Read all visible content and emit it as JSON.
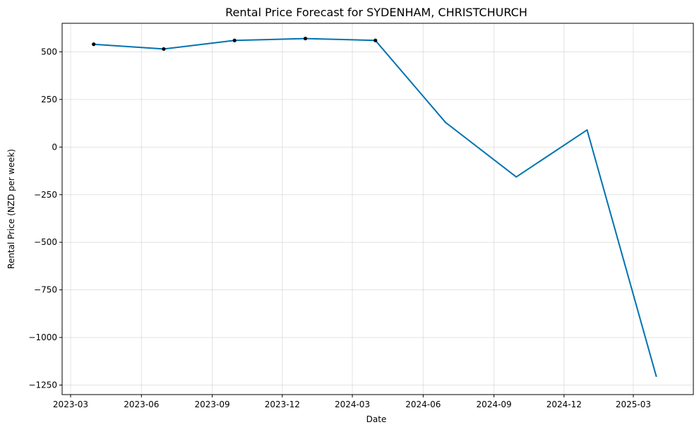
{
  "chart_data": {
    "type": "line",
    "title": "Rental Price Forecast for SYDENHAM, CHRISTCHURCH",
    "xlabel": "Date",
    "ylabel": "Rental Price (NZD per week)",
    "xlim": [
      "2023-02-18",
      "2025-05-18"
    ],
    "ylim": [
      -1300,
      650
    ],
    "x_ticks": [
      {
        "date": "2023-03-01",
        "label": "2023-03"
      },
      {
        "date": "2023-06-01",
        "label": "2023-06"
      },
      {
        "date": "2023-09-01",
        "label": "2023-09"
      },
      {
        "date": "2023-12-01",
        "label": "2023-12"
      },
      {
        "date": "2024-03-01",
        "label": "2024-03"
      },
      {
        "date": "2024-06-01",
        "label": "2024-06"
      },
      {
        "date": "2024-09-01",
        "label": "2024-09"
      },
      {
        "date": "2024-12-01",
        "label": "2024-12"
      },
      {
        "date": "2025-03-01",
        "label": "2025-03"
      }
    ],
    "y_ticks": [
      {
        "value": 500,
        "label": "500"
      },
      {
        "value": 250,
        "label": "250"
      },
      {
        "value": 0,
        "label": "0"
      },
      {
        "value": -250,
        "label": "−250"
      },
      {
        "value": -500,
        "label": "−500"
      },
      {
        "value": -750,
        "label": "−750"
      },
      {
        "value": -1000,
        "label": "−1000"
      },
      {
        "value": -1250,
        "label": "−1250"
      }
    ],
    "grid": true,
    "series": [
      {
        "color": "#0072b2",
        "x": [
          "2023-03-31",
          "2023-06-30",
          "2023-09-30",
          "2023-12-31",
          "2024-03-31",
          "2024-06-30",
          "2024-09-30",
          "2024-12-31",
          "2025-03-31"
        ],
        "y": [
          540,
          515,
          560,
          570,
          560,
          130,
          -157,
          90,
          -1207
        ]
      }
    ],
    "observed_points": {
      "color": "#000000",
      "x": [
        "2023-03-31",
        "2023-06-30",
        "2023-09-30",
        "2023-12-31",
        "2024-03-31"
      ],
      "y": [
        540,
        515,
        560,
        570,
        560
      ]
    }
  }
}
